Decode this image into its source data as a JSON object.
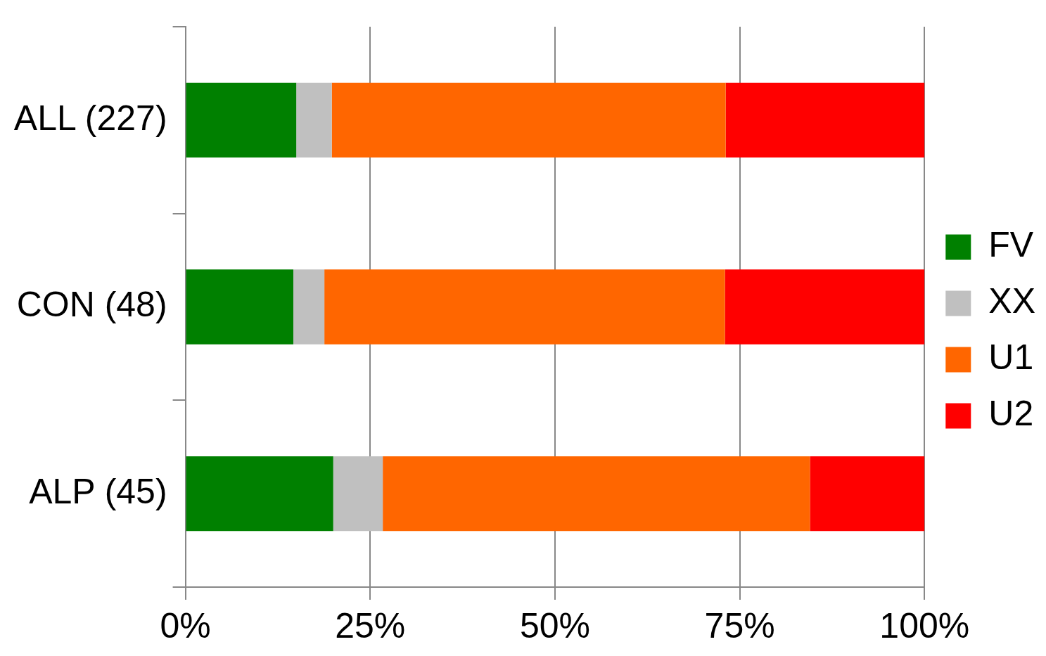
{
  "chart_data": {
    "type": "bar",
    "orientation": "horizontal",
    "stacked": true,
    "categories": [
      "ALL (227)",
      "CON (48)",
      "ALP (45)"
    ],
    "series": [
      {
        "name": "FV",
        "color": "#008000",
        "values": [
          15.0,
          14.6,
          20.0
        ]
      },
      {
        "name": "XX",
        "color": "#c0c0c0",
        "values": [
          4.8,
          4.2,
          6.7
        ]
      },
      {
        "name": "U1",
        "color": "#ff6600",
        "values": [
          53.3,
          54.2,
          57.8
        ]
      },
      {
        "name": "U2",
        "color": "#ff0000",
        "values": [
          26.9,
          27.0,
          15.5
        ]
      }
    ],
    "xlim": [
      0,
      100
    ],
    "xticks": [
      {
        "value": 0,
        "label": "0%"
      },
      {
        "value": 25,
        "label": "25%"
      },
      {
        "value": 50,
        "label": "50%"
      },
      {
        "value": 75,
        "label": "75%"
      },
      {
        "value": 100,
        "label": "100%"
      }
    ],
    "grid": "x",
    "legend": "right"
  }
}
